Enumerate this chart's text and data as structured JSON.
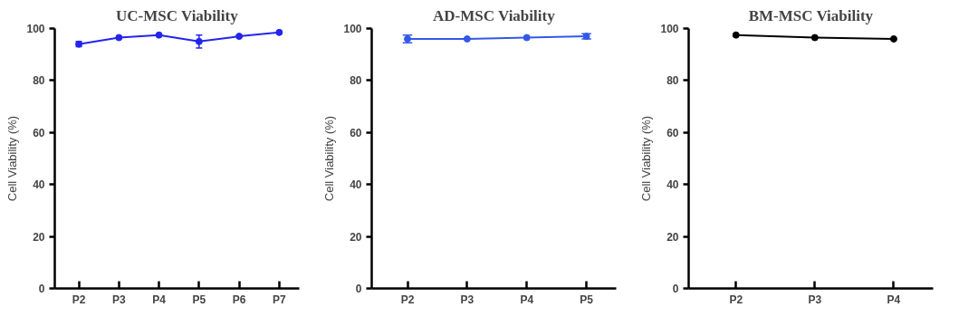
{
  "chart_data": [
    {
      "type": "line",
      "title": "UC-MSC Viability",
      "ylabel": "Cell Viability (%)",
      "categories": [
        "P2",
        "P3",
        "P4",
        "P5",
        "P6",
        "P7"
      ],
      "values": [
        94,
        96.5,
        97.5,
        95,
        97,
        98.5
      ],
      "errors": [
        1,
        null,
        null,
        2.5,
        null,
        null
      ],
      "color": "#2424f0",
      "ylim": [
        0,
        100
      ],
      "yticks": [
        0,
        20,
        40,
        60,
        80,
        100
      ],
      "marker": "circle",
      "grid": false
    },
    {
      "type": "line",
      "title": "AD-MSC Viability",
      "ylabel": "Cell Viability (%)",
      "categories": [
        "P2",
        "P3",
        "P4",
        "P5"
      ],
      "values": [
        96,
        96,
        96.5,
        97
      ],
      "errors": [
        1.5,
        null,
        null,
        1
      ],
      "color": "#3358e8",
      "ylim": [
        0,
        100
      ],
      "yticks": [
        0,
        20,
        40,
        60,
        80,
        100
      ],
      "marker": "circle",
      "grid": false
    },
    {
      "type": "line",
      "title": "BM-MSC Viability",
      "ylabel": "Cell Viability (%)",
      "categories": [
        "P2",
        "P3",
        "P4"
      ],
      "values": [
        97.5,
        96.5,
        96
      ],
      "color": "#000000",
      "ylim": [
        0,
        100
      ],
      "yticks": [
        0,
        20,
        40,
        60,
        80,
        100
      ],
      "marker": "circle",
      "grid": false
    }
  ]
}
